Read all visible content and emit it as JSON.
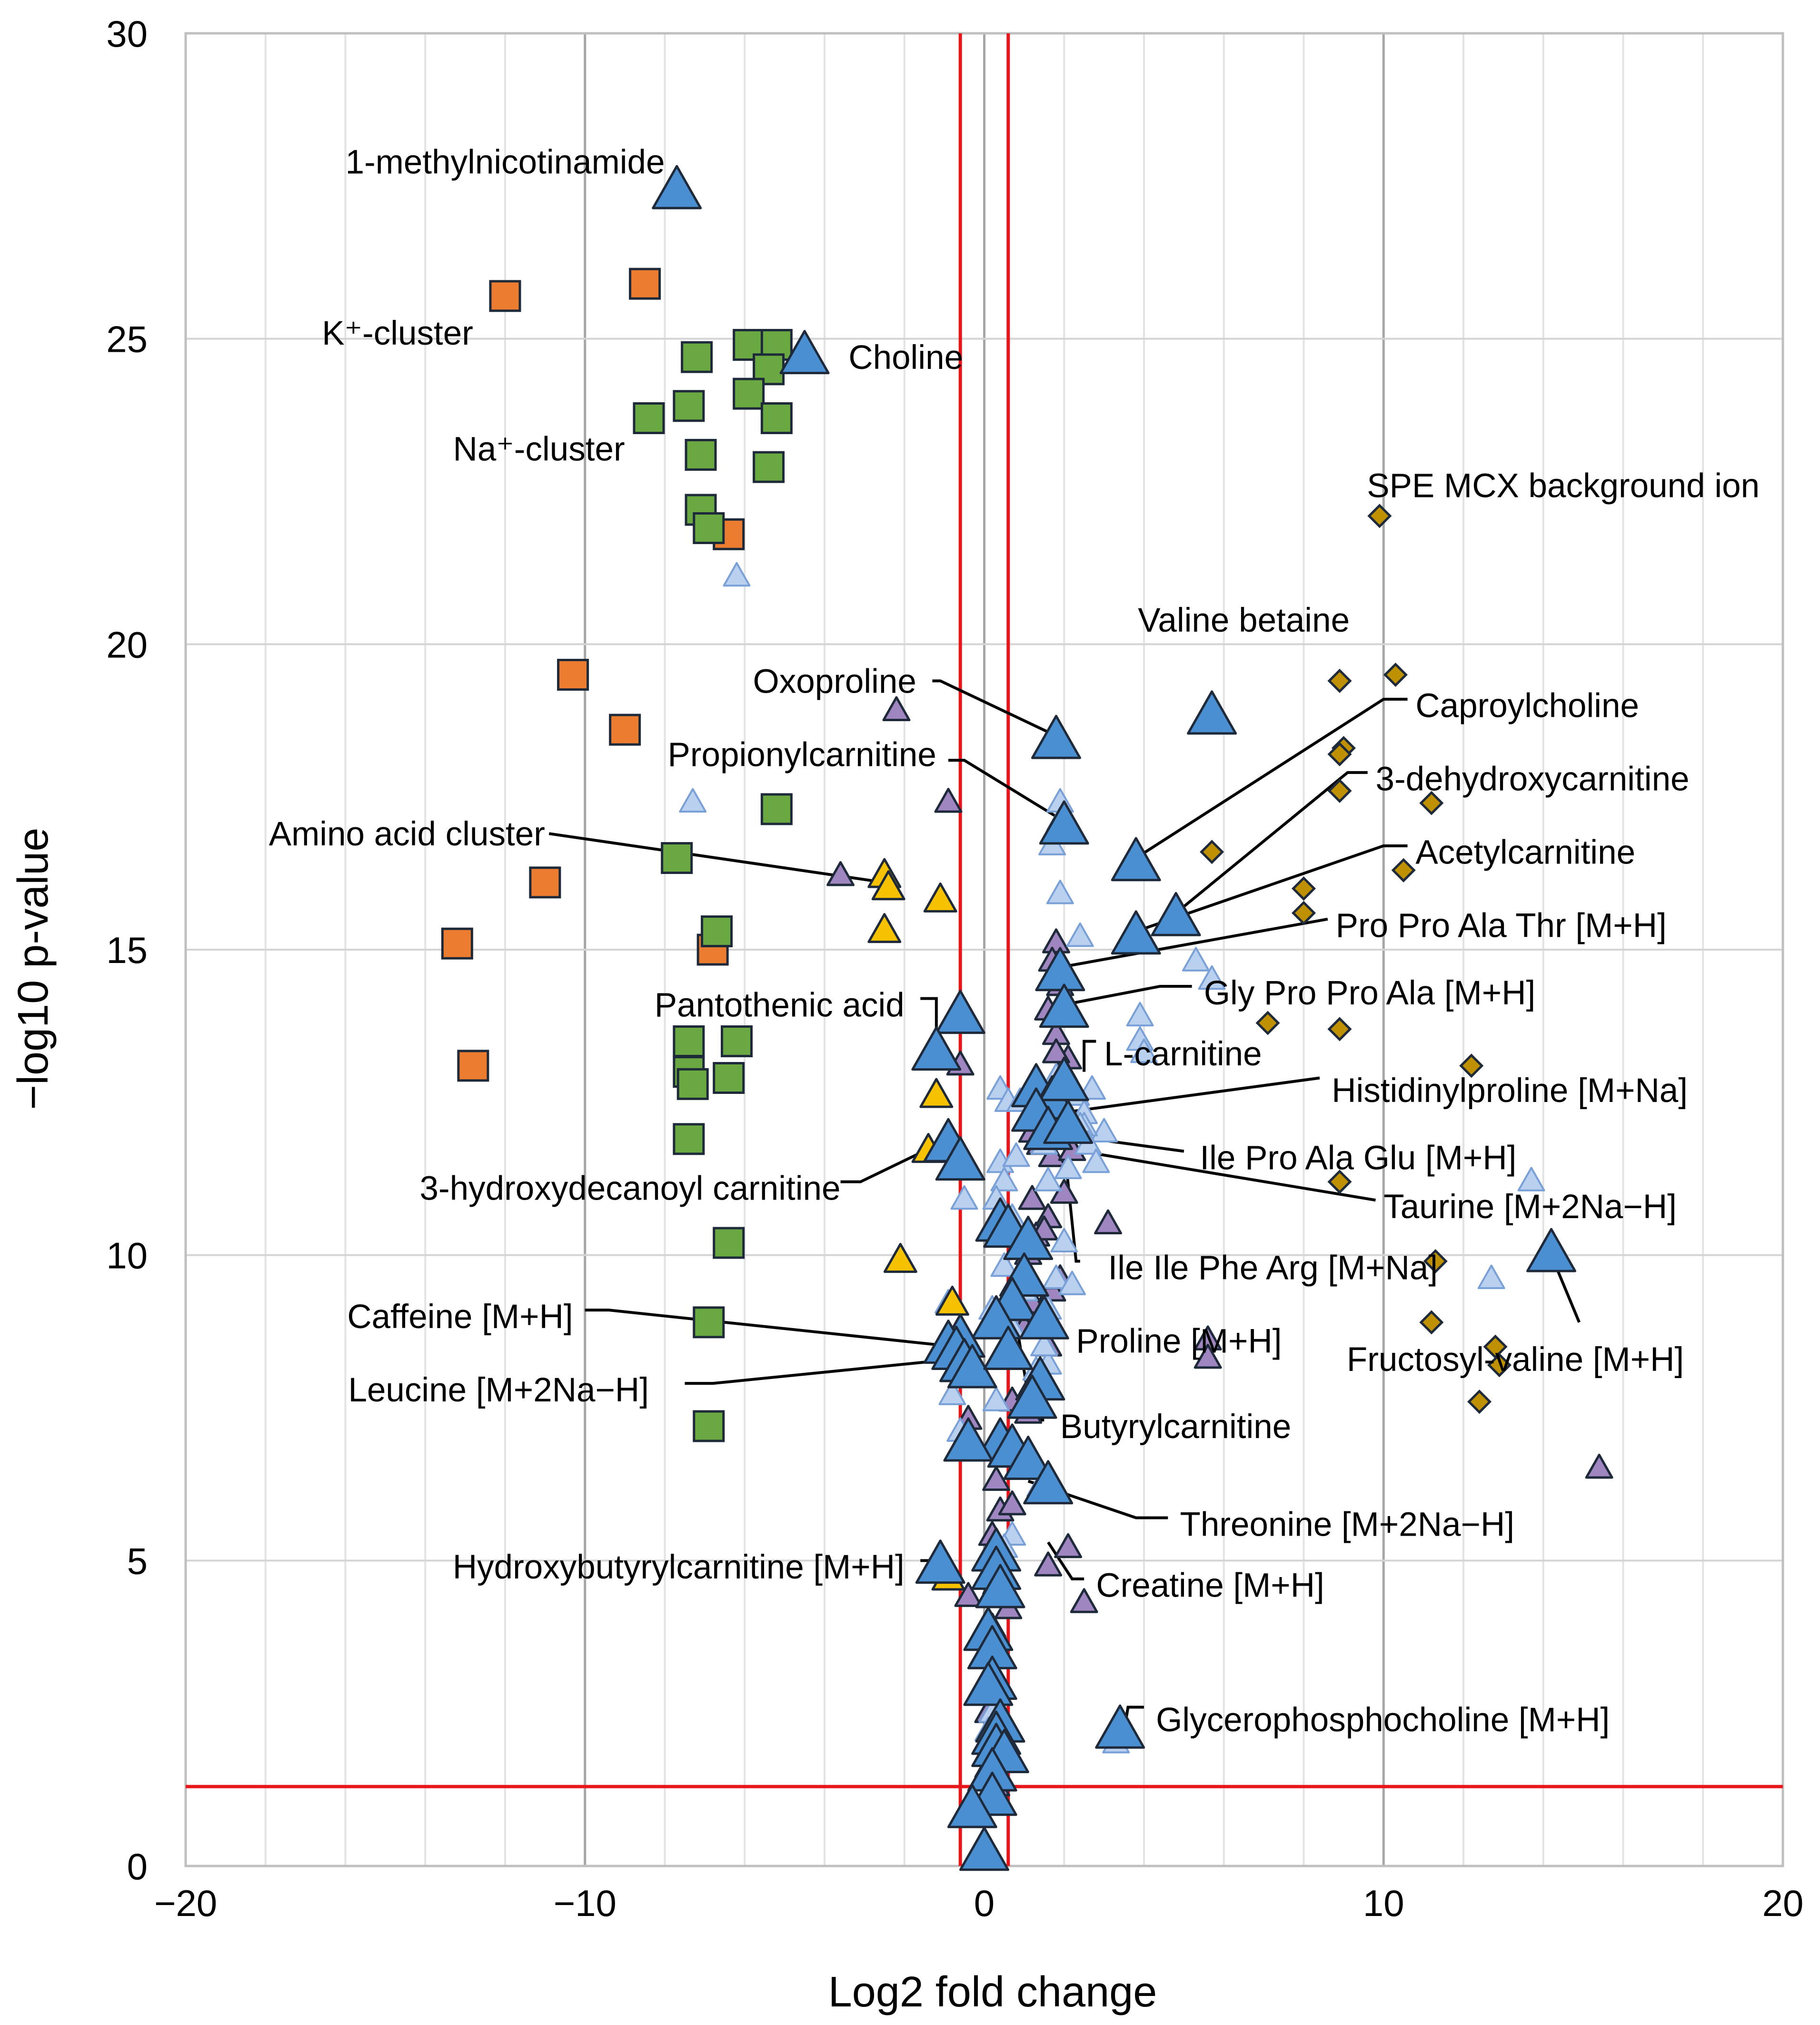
{
  "chart_data": {
    "type": "scatter",
    "title": "",
    "xlabel": "Log2 fold change",
    "ylabel": "−log10 p-value",
    "xlim": [
      -20,
      20
    ],
    "ylim": [
      0,
      30
    ],
    "x_ticks": [
      -20,
      -10,
      0,
      10,
      20
    ],
    "x_tick_labels": [
      "−20",
      "−10",
      "0",
      "10",
      "20"
    ],
    "y_ticks": [
      0,
      5,
      10,
      15,
      20,
      25,
      30
    ],
    "y_tick_labels": [
      "0",
      "5",
      "10",
      "15",
      "20",
      "25",
      "30"
    ],
    "grid": true,
    "threshold_lines": {
      "x": [
        -0.6,
        0.6
      ],
      "y": [
        1.3
      ],
      "color": "#e8161b"
    },
    "colors": {
      "orange": "#ec7c30",
      "green": "#6aa841",
      "blue": "#4a8fd1",
      "light_blue": "#b9d0ef",
      "purple": "#9f86c0",
      "yellow": "#f6c200",
      "gold": "#bf9000"
    },
    "series": [
      {
        "name": "orange squares",
        "marker": "square",
        "color": "orange",
        "x": [
          -12,
          -8.5,
          -6.4,
          -10.3,
          -9,
          -11,
          -13.2,
          -6.8,
          -12.8
        ],
        "y": [
          25.7,
          25.9,
          21.8,
          19.5,
          18.6,
          16.1,
          15.1,
          15,
          13.1
        ]
      },
      {
        "name": "green squares",
        "marker": "square",
        "color": "green",
        "x": [
          -7.2,
          -5.9,
          -5.2,
          -5.4,
          -5.9,
          -7.4,
          -8.4,
          -5.2,
          -7.1,
          -5.4,
          -7.1,
          -6.9,
          -5.2,
          -7.7,
          -6.7,
          -7.4,
          -6.2,
          -7.4,
          -6.4,
          -7.3,
          -7.4,
          -6.4,
          -6.9,
          -6.9
        ],
        "y": [
          24.7,
          24.9,
          24.9,
          24.5,
          24.1,
          23.9,
          23.7,
          23.7,
          23.1,
          22.9,
          22.2,
          21.9,
          17.3,
          16.5,
          15.3,
          13.5,
          13.5,
          13,
          12.9,
          12.8,
          11.9,
          10.2,
          8.9,
          7.2
        ]
      },
      {
        "name": "blue triangles",
        "marker": "triangle",
        "color": "blue",
        "x": [
          -7.7,
          -4.5,
          5.7,
          1.8,
          2,
          3.8,
          4.8,
          3.8,
          1.9,
          2,
          -0.6,
          -1.2,
          1.3,
          1.7,
          2,
          1.3,
          1.6,
          2.1,
          -0.9,
          -0.6,
          0.4,
          0.6,
          14.2,
          1.1,
          1,
          0.7,
          1.5,
          0.3,
          -0.6,
          -0.9,
          -0.7,
          -0.5,
          -0.3,
          0.6,
          1.4,
          1.2,
          0.4,
          -0.4,
          0.7,
          1.1,
          1.6,
          0.3,
          -1.1,
          0.3,
          0.4,
          3.4,
          0.1,
          0.2,
          0.2,
          0.1,
          0.4,
          0.3,
          0.3,
          0.5,
          0.2,
          0.2,
          -0.3,
          0
        ],
        "y": [
          27.4,
          24.7,
          18.8,
          18.4,
          17,
          16.4,
          15.5,
          15.2,
          14.6,
          14,
          13.9,
          13.3,
          12.7,
          12.5,
          12.8,
          12.3,
          12,
          12.1,
          11.8,
          11.5,
          10.5,
          10.4,
          10,
          10.2,
          9.6,
          9.2,
          8.9,
          8.9,
          8.6,
          8.5,
          8.4,
          8.2,
          8.1,
          8.4,
          7.9,
          7.6,
          6.9,
          6.9,
          6.8,
          6.6,
          6.2,
          5.1,
          4.9,
          4.8,
          4.5,
          2.2,
          3.8,
          3.5,
          3,
          2.9,
          2.3,
          2.1,
          1.9,
          1.8,
          1.5,
          1.1,
          0.9,
          0.2
        ]
      },
      {
        "name": "light blue triangles",
        "marker": "triangle",
        "color": "light_blue",
        "x": [
          -6.2,
          -7.3,
          1.9,
          1.9,
          1.7,
          1.9,
          2.4,
          5.3,
          5.7,
          3.9,
          3.9,
          4,
          1.8,
          2.3,
          2.5,
          2.7,
          3,
          2.5,
          0.4,
          0.6,
          0.9,
          1.5,
          2.4,
          2.6,
          0.4,
          0.5,
          0.8,
          1.6,
          2.1,
          2.8,
          13.7,
          -0.5,
          0.3,
          0.7,
          2,
          1.2,
          1.8,
          12.7,
          0.5,
          1,
          -0.9,
          0.2,
          1.6,
          2.2,
          0.7,
          1.6,
          -0.8,
          0.3,
          1.3,
          1.5,
          -0.6,
          0.3,
          1.4,
          0.7,
          0.5,
          3.3,
          0.2,
          0.1
        ],
        "y": [
          21.1,
          17.4,
          17.4,
          17.1,
          16.7,
          15.9,
          15.2,
          14.8,
          14.5,
          13.9,
          13.5,
          13.3,
          12.9,
          12.6,
          12.3,
          12.7,
          12,
          12.1,
          12.7,
          12.5,
          12.5,
          11.8,
          12.1,
          11.8,
          11.5,
          11.2,
          11.6,
          11.2,
          11.4,
          11.5,
          11.2,
          10.9,
          10.9,
          10.6,
          10.2,
          10.2,
          9.6,
          9.6,
          9.8,
          9.4,
          9.2,
          9.1,
          9.1,
          9.5,
          8.8,
          8.2,
          7.7,
          7.6,
          8.1,
          8.5,
          7.1,
          6.8,
          6.2,
          5.4,
          5.2,
          2,
          2.5,
          2.2
        ]
      },
      {
        "name": "purple triangles",
        "marker": "triangle",
        "color": "purple",
        "x": [
          -2.2,
          -0.9,
          -3.6,
          1.8,
          1.7,
          1.9,
          1.6,
          1.8,
          2.1,
          1.8,
          2,
          1.9,
          1.7,
          -0.6,
          1.2,
          1.4,
          1.7,
          2.2,
          3.1,
          1.2,
          1.6,
          2,
          1.3,
          1.5,
          1.1,
          1.2,
          1.7,
          1.9,
          0.9,
          1,
          1.6,
          5.6,
          5.6,
          0.7,
          1.1,
          1.4,
          -0.4,
          -0.6,
          1.1,
          15.4,
          0.3,
          0.4,
          0.7,
          0.2,
          0.4,
          0.3,
          0.6,
          1.6,
          2.1,
          2.5,
          -0.4,
          0.2,
          0.3,
          0.1,
          0.2,
          0.1,
          0.3
        ],
        "y": [
          18.9,
          17.4,
          16.2,
          15.1,
          14.8,
          14.4,
          14,
          13.6,
          13.2,
          13.3,
          13,
          12.8,
          12.5,
          13.1,
          12,
          11.8,
          11.6,
          11.7,
          10.5,
          10.9,
          10.6,
          11,
          10.3,
          10.4,
          10,
          9.2,
          9.4,
          9.6,
          9,
          8.8,
          8.5,
          8.6,
          8.3,
          7.6,
          7.4,
          8,
          7.3,
          6.8,
          6.5,
          6.5,
          6.3,
          5.8,
          5.9,
          5.4,
          5,
          4.6,
          4.2,
          4.9,
          5.2,
          4.3,
          4.4,
          3.9,
          3.4,
          2.5,
          2.1,
          1.6,
          1.3
        ]
      },
      {
        "name": "yellow triangles",
        "marker": "triangle",
        "color": "yellow",
        "x": [
          -2.5,
          -2.4,
          -1.1,
          -2.5,
          -1.2,
          -1.4,
          -2.1,
          -0.8,
          -0.9
        ],
        "y": [
          16.2,
          16,
          15.8,
          15.3,
          12.6,
          11.7,
          9.9,
          9.2,
          4.7
        ]
      },
      {
        "name": "gold diamonds",
        "marker": "diamond",
        "color": "gold",
        "x": [
          9.9,
          8.9,
          10.3,
          9,
          8.9,
          8.9,
          11.2,
          5.7,
          10.5,
          8,
          8,
          7.1,
          8.9,
          12.2,
          8.9,
          11.3,
          11.2,
          12.8,
          12.9,
          12.4
        ],
        "y": [
          22.1,
          19.4,
          19.5,
          18.3,
          18.2,
          17.6,
          17.4,
          16.6,
          16.3,
          16,
          15.6,
          13.8,
          13.7,
          13.1,
          11.2,
          9.9,
          8.9,
          8.5,
          8.2,
          7.6
        ]
      }
    ],
    "annotations": [
      {
        "label": "1-methylnicotinamide",
        "tx": -8,
        "ty": 27.9,
        "anchor": "end"
      },
      {
        "label": "K⁺-cluster",
        "tx": -12.8,
        "ty": 25.1,
        "anchor": "end"
      },
      {
        "label": "Choline",
        "tx": -3.4,
        "ty": 24.7,
        "anchor": "start"
      },
      {
        "label": "Na⁺-cluster",
        "tx": -9,
        "ty": 23.2,
        "anchor": "end"
      },
      {
        "label": "SPE MCX background ion",
        "tx": 14.5,
        "ty": 22.6,
        "anchor": "middle"
      },
      {
        "label": "Valine betaine",
        "tx": 6.5,
        "ty": 20.4,
        "anchor": "middle"
      },
      {
        "label": "Oxoproline",
        "tx": -1.7,
        "ty": 19.4,
        "anchor": "end",
        "lx": [
          -1.3,
          -1.1,
          1.8
        ],
        "ly": [
          19.4,
          19.4,
          18.5
        ]
      },
      {
        "label": "Caproylcholine",
        "tx": 10.8,
        "ty": 19,
        "anchor": "start",
        "lx": [
          10.6,
          10,
          3.8
        ],
        "ly": [
          19.1,
          19.1,
          16.5
        ]
      },
      {
        "label": "Propionylcarnitine",
        "tx": -1.2,
        "ty": 18.2,
        "anchor": "end",
        "lx": [
          -0.9,
          -0.5,
          2
        ],
        "ly": [
          18.1,
          18.1,
          17.1
        ]
      },
      {
        "label": "3-dehydroxycarnitine",
        "tx": 9.8,
        "ty": 17.8,
        "anchor": "start",
        "lx": [
          9.6,
          9.1,
          4.8
        ],
        "ly": [
          17.9,
          17.9,
          15.6
        ]
      },
      {
        "label": "Amino acid cluster",
        "tx": -11,
        "ty": 16.9,
        "anchor": "end",
        "lx": [
          -10.9,
          -2.5
        ],
        "ly": [
          16.9,
          16.1
        ]
      },
      {
        "label": "Acetylcarnitine",
        "tx": 10.8,
        "ty": 16.6,
        "anchor": "start",
        "lx": [
          10.6,
          10,
          3.8
        ],
        "ly": [
          16.7,
          16.7,
          15.3
        ]
      },
      {
        "label": "Pro Pro Ala Thr [M+H]",
        "tx": 8.8,
        "ty": 15.4,
        "anchor": "start",
        "lx": [
          8.6,
          1.8
        ],
        "ly": [
          15.5,
          14.7
        ]
      },
      {
        "label": "Pantothenic acid",
        "tx": -2,
        "ty": 14.1,
        "anchor": "end",
        "lx": [
          -1.6,
          -1.2,
          -1.2
        ],
        "ly": [
          14.2,
          14.2,
          13.4
        ]
      },
      {
        "label": "Gly Pro Pro Ala [M+H]",
        "tx": 5.5,
        "ty": 14.3,
        "anchor": "start",
        "lx": [
          5.2,
          4.4,
          2
        ],
        "ly": [
          14.4,
          14.4,
          14.1
        ]
      },
      {
        "label": "L-carnitine",
        "tx": 3,
        "ty": 13.3,
        "anchor": "start",
        "lx": [
          2.8,
          2.5,
          2.5
        ],
        "ly": [
          13.5,
          13.5,
          13
        ]
      },
      {
        "label": "Histidinylproline [M+Na]",
        "tx": 8.7,
        "ty": 12.7,
        "anchor": "start",
        "lx": [
          8.4,
          1.6
        ],
        "ly": [
          12.9,
          12.3
        ]
      },
      {
        "label": "Ile Pro Ala Glu [M+H]",
        "tx": 5.4,
        "ty": 11.6,
        "anchor": "start",
        "lx": [
          5,
          1.6
        ],
        "ly": [
          11.7,
          12
        ]
      },
      {
        "label": "3-hydroxydecanoyl carnitine",
        "tx": -3.6,
        "ty": 11.1,
        "anchor": "end",
        "lx": [
          -3.6,
          -3.1,
          -1.2
        ],
        "ly": [
          11.2,
          11.2,
          11.8
        ]
      },
      {
        "label": "Taurine [M+2Na−H]",
        "tx": 10,
        "ty": 10.8,
        "anchor": "start",
        "lx": [
          9.8,
          1.5
        ],
        "ly": [
          10.9,
          11.8
        ]
      },
      {
        "label": "Ile Ile Phe Arg  [M+Na]",
        "tx": 3.1,
        "ty": 9.8,
        "anchor": "start",
        "lx": [
          2.4,
          2.3,
          2
        ],
        "ly": [
          9.9,
          9.9,
          11.8
        ]
      },
      {
        "label": "Caffeine [M+H]",
        "tx": -10.3,
        "ty": 9,
        "anchor": "end",
        "lx": [
          -10,
          -9.4,
          -0.7
        ],
        "ly": [
          9.1,
          9.1,
          8.5
        ]
      },
      {
        "label": "Proline [M+H]",
        "tx": 2.3,
        "ty": 8.6,
        "anchor": "start",
        "lx": [
          1.9,
          1.7,
          1.1
        ],
        "ly": [
          8.8,
          8.8,
          9.6
        ]
      },
      {
        "label": "Fructosyl-valine [M+H]",
        "tx": 13.3,
        "ty": 8.3,
        "anchor": "middle",
        "lx": [
          14.9,
          14.2
        ],
        "ly": [
          8.9,
          10
        ]
      },
      {
        "label": "Leucine [M+2Na−H]",
        "tx": -8.4,
        "ty": 7.8,
        "anchor": "end",
        "lx": [
          -7.5,
          -6.8,
          -0.7
        ],
        "ly": [
          7.9,
          7.9,
          8.3
        ]
      },
      {
        "label": "Butyrylcarnitine",
        "tx": 1.9,
        "ty": 7.2,
        "anchor": "start",
        "lx": [
          1.5,
          1.2,
          0.8
        ],
        "ly": [
          7.3,
          7.3,
          8.9
        ]
      },
      {
        "label": "Threonine [M+2Na−H]",
        "tx": 4.9,
        "ty": 5.6,
        "anchor": "start",
        "lx": [
          4.6,
          3.8,
          1.1
        ],
        "ly": [
          5.7,
          5.7,
          6.3
        ]
      },
      {
        "label": "Hydroxybutyrylcarnitine [M+H]",
        "tx": -2,
        "ty": 4.9,
        "anchor": "end",
        "lx": [
          -1.6,
          -1.1
        ],
        "ly": [
          5,
          5
        ]
      },
      {
        "label": "Creatine [M+H]",
        "tx": 2.8,
        "ty": 4.6,
        "anchor": "start",
        "lx": [
          2.5,
          2.2,
          1.6
        ],
        "ly": [
          4.7,
          4.7,
          5.3
        ]
      },
      {
        "label": "Glycerophosphocholine [M+H]",
        "tx": 4.3,
        "ty": 2.4,
        "anchor": "start",
        "lx": [
          4,
          3.6,
          3.5
        ],
        "ly": [
          2.6,
          2.6,
          2.2
        ]
      }
    ]
  }
}
